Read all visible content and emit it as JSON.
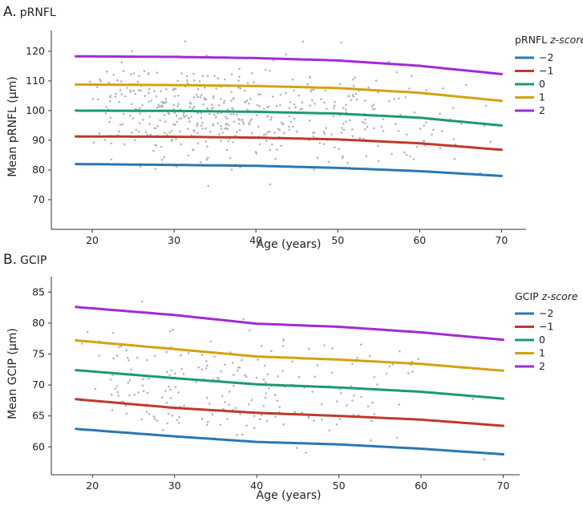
{
  "colors": {
    "neg2": "#2878b5",
    "neg1": "#c0392b",
    "zero": "#1a9a73",
    "pos1": "#d4a20f",
    "pos2": "#a22ad8",
    "points": "#b5b5b5",
    "axis": "#333333"
  },
  "chart_data": [
    {
      "type": "line",
      "panel_letter": "A.",
      "panel_name": "pRNFL",
      "xlabel": "Age (years)",
      "ylabel": "Mean pRNFL (μm)",
      "xlim": [
        15,
        73
      ],
      "ylim": [
        60,
        127
      ],
      "xticks": [
        20,
        30,
        40,
        50,
        60,
        70
      ],
      "yticks": [
        70,
        80,
        90,
        100,
        110,
        120
      ],
      "legend_title": "pRNFL",
      "legend_title_italic": "z-score",
      "legend_position": "right",
      "x": [
        18,
        30,
        40,
        50,
        60,
        70
      ],
      "series": [
        {
          "name": "−2",
          "color_key": "neg2",
          "values": [
            82.0,
            81.7,
            81.4,
            80.7,
            79.6,
            78.0
          ]
        },
        {
          "name": "−1",
          "color_key": "neg1",
          "values": [
            91.3,
            91.2,
            90.9,
            90.3,
            89.0,
            86.8
          ]
        },
        {
          "name": "0",
          "color_key": "zero",
          "values": [
            100.0,
            99.9,
            99.6,
            99.0,
            97.6,
            95.0
          ]
        },
        {
          "name": "1",
          "color_key": "pos1",
          "values": [
            108.8,
            108.6,
            108.3,
            107.6,
            106.0,
            103.3
          ]
        },
        {
          "name": "2",
          "color_key": "pos2",
          "values": [
            118.3,
            118.1,
            117.7,
            116.9,
            115.1,
            112.3
          ]
        }
      ],
      "scatter": {
        "n": 520,
        "seed": 7,
        "x_min": 18,
        "x_max": 70,
        "x_mode": 30,
        "y_mean": 100,
        "y_sd": 8.5,
        "y_min": 61.5,
        "y_max": 125.5
      }
    },
    {
      "type": "line",
      "panel_letter": "B.",
      "panel_name": "GCIP",
      "xlabel": "Age (years)",
      "ylabel": "Mean GCIP (μm)",
      "xlim": [
        15,
        72
      ],
      "ylim": [
        55.5,
        87.5
      ],
      "xticks": [
        20,
        30,
        40,
        50,
        60,
        70
      ],
      "yticks": [
        60,
        65,
        70,
        75,
        80,
        85
      ],
      "legend_title": "GCIP",
      "legend_title_italic": "z-score",
      "legend_position": "right",
      "x": [
        18,
        30,
        40,
        50,
        60,
        70
      ],
      "series": [
        {
          "name": "−2",
          "color_key": "neg2",
          "values": [
            62.9,
            61.7,
            60.8,
            60.4,
            59.7,
            58.8
          ]
        },
        {
          "name": "−1",
          "color_key": "neg1",
          "values": [
            67.7,
            66.3,
            65.5,
            65.0,
            64.4,
            63.4
          ]
        },
        {
          "name": "0",
          "color_key": "zero",
          "values": [
            72.4,
            71.1,
            70.1,
            69.6,
            68.9,
            67.8
          ]
        },
        {
          "name": "1",
          "color_key": "pos1",
          "values": [
            77.2,
            75.8,
            74.6,
            74.1,
            73.4,
            72.3
          ]
        },
        {
          "name": "2",
          "color_key": "pos2",
          "values": [
            82.6,
            81.3,
            79.9,
            79.4,
            78.5,
            77.3
          ]
        }
      ],
      "scatter": {
        "n": 230,
        "seed": 23,
        "x_min": 18,
        "x_max": 70,
        "x_mode": 28,
        "y_mean": 71.5,
        "y_sd": 4.6,
        "y_min": 57,
        "y_max": 86
      }
    }
  ]
}
